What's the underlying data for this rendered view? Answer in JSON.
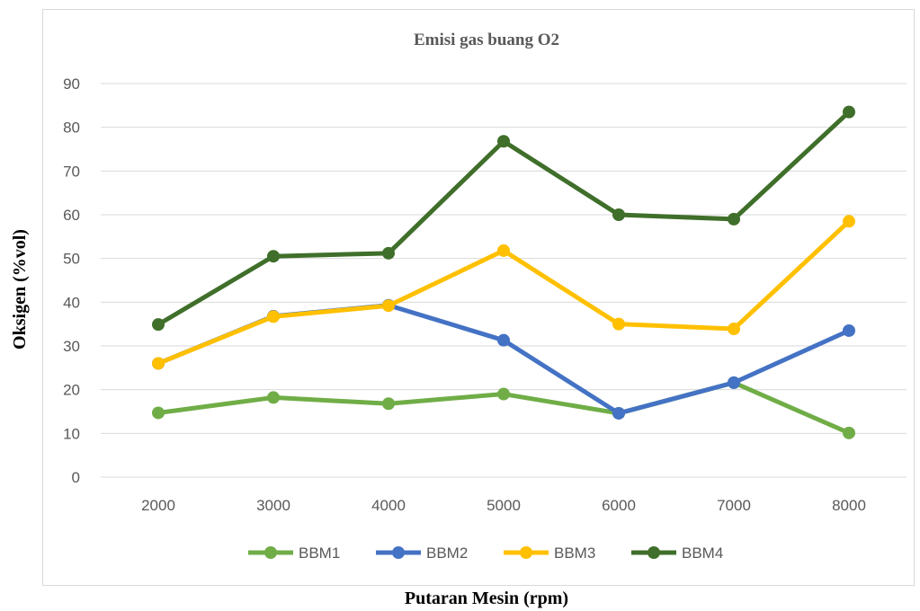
{
  "chart_data": {
    "type": "line",
    "title": "Emisi gas buang O2",
    "xlabel": "Putaran Mesin (rpm)",
    "ylabel": "Oksigen (%vol)",
    "categories": [
      "2000",
      "3000",
      "4000",
      "5000",
      "6000",
      "7000",
      "8000"
    ],
    "ylim": [
      0,
      90
    ],
    "yticks": [
      0,
      10,
      20,
      30,
      40,
      50,
      60,
      70,
      80,
      90
    ],
    "grid": true,
    "legend": "bottom",
    "series": [
      {
        "name": "BBM1",
        "color": "#70ad47",
        "values": [
          14.7,
          18.2,
          16.8,
          19.0,
          14.6,
          21.6,
          10.1
        ]
      },
      {
        "name": "BBM2",
        "color": "#4472c4",
        "values": [
          26.0,
          36.8,
          39.3,
          31.3,
          14.6,
          21.6,
          33.5
        ]
      },
      {
        "name": "BBM3",
        "color": "#ffc000",
        "values": [
          26.0,
          36.7,
          39.2,
          51.8,
          35.0,
          33.9,
          58.5
        ]
      },
      {
        "name": "BBM4",
        "color": "#3f6f2a",
        "values": [
          34.9,
          50.5,
          51.2,
          76.8,
          60.0,
          59.0,
          83.5
        ]
      }
    ]
  }
}
